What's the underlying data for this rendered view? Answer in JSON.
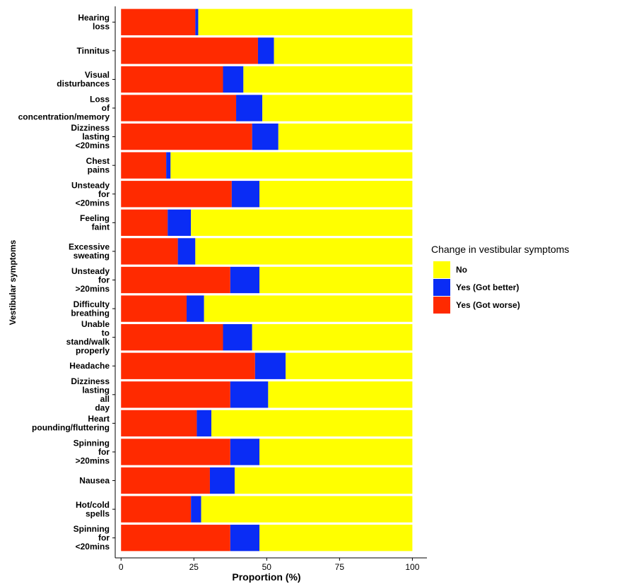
{
  "chart_data": {
    "type": "stacked-barh",
    "x_label": "Proportion (%)",
    "y_label": "Vestibular symptoms",
    "legend_title": "Change in vestibular symptoms",
    "legend": "right",
    "categories": [
      "Hearing loss",
      "Tinnitus",
      "Visual disturbances",
      "Loss of concentration/memory",
      "Dizziness lasting <20mins",
      "Chest pains",
      "Unsteady for <20mins",
      "Feeling faint",
      "Excessive sweating",
      "Unsteady for >20mins",
      "Difficulty breathing",
      "Unable to stand/walk properly",
      "Headache",
      "Dizziness lasting all day",
      "Heart pounding/fluttering",
      "Spinning for >20mins",
      "Nausea",
      "Hot/cold spells",
      "Spinning for <20mins"
    ],
    "series": [
      {
        "name": "No",
        "color": "#ffff00",
        "values": [
          73.5,
          47.5,
          58,
          51.5,
          46,
          83,
          52.5,
          76,
          74.5,
          52.5,
          71.5,
          55,
          43.5,
          49.5,
          69,
          52.5,
          61,
          72.5,
          52.5
        ]
      },
      {
        "name": "Yes (Got better)",
        "color": "#0a2cf5",
        "values": [
          1,
          5.5,
          7,
          9,
          9,
          1.5,
          9.5,
          8,
          6,
          10,
          6,
          10,
          10.5,
          13,
          5,
          10,
          8.5,
          3.5,
          10
        ]
      },
      {
        "name": "Yes (Got worse)",
        "color": "#ff2a00",
        "values": [
          25.5,
          47,
          35,
          39.5,
          45,
          15.5,
          38,
          16,
          19.5,
          37.5,
          22.5,
          35,
          46,
          37.5,
          26,
          37.5,
          30.5,
          24,
          37.5
        ]
      }
    ],
    "xlim": [
      -2,
      105
    ],
    "xticks": [
      0,
      25,
      50,
      75,
      100
    ]
  }
}
